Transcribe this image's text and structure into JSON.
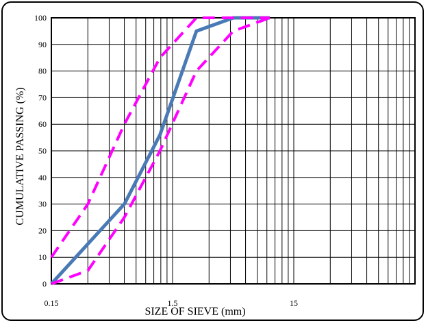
{
  "chart_data": {
    "type": "line",
    "title": "",
    "xlabel": "SIZE OF SIEVE (mm)",
    "ylabel": "CUMULATIVE PASSING (%)",
    "x_scale": "log",
    "xlim": [
      0.15,
      150
    ],
    "ylim": [
      0,
      100
    ],
    "x_tick_labels": [
      "0.15",
      "1.5",
      "15"
    ],
    "x_tick_values": [
      0.15,
      1.5,
      15
    ],
    "y_ticks": [
      0,
      10,
      20,
      30,
      40,
      50,
      60,
      70,
      80,
      90,
      100
    ],
    "grid": true,
    "series": [
      {
        "color": "#4a7ab5",
        "style": "solid",
        "x": [
          0.15,
          0.6,
          1.18,
          2.36,
          4.75,
          9.5
        ],
        "y": [
          0,
          30,
          56,
          95,
          100,
          100
        ]
      },
      {
        "color": "#ff00ff",
        "style": "dashed",
        "x": [
          0.15,
          0.3,
          0.6,
          1.18,
          2.36,
          4.75,
          9.5
        ],
        "y": [
          10,
          30,
          60,
          85,
          100,
          100,
          100
        ]
      },
      {
        "color": "#ff00ff",
        "style": "dashed",
        "x": [
          0.15,
          0.3,
          0.6,
          1.18,
          2.36,
          4.75,
          9.5
        ],
        "y": [
          0,
          5,
          25,
          50,
          80,
          95,
          100
        ]
      }
    ]
  }
}
